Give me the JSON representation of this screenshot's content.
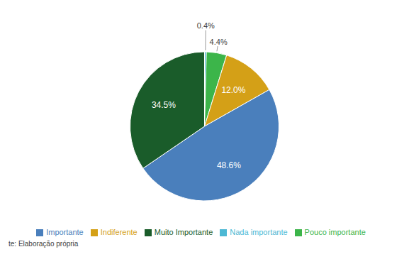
{
  "chart_data": {
    "type": "pie",
    "categories": [
      "Nada importante",
      "Pouco importante",
      "Indiferente",
      "Importante",
      "Muito Importante"
    ],
    "values": [
      0.4,
      4.4,
      12.0,
      48.6,
      34.5
    ],
    "value_labels": [
      "0.4%",
      "4.4%",
      "12.0%",
      "48.6%",
      "34.5%"
    ],
    "data_labels": true,
    "colors": [
      "#4db8d4",
      "#3cb54a",
      "#d4a017",
      "#4a7fbc",
      "#1a5c2a"
    ],
    "legend": "bottom",
    "annotations": [
      "te: Elaboração própria"
    ]
  }
}
